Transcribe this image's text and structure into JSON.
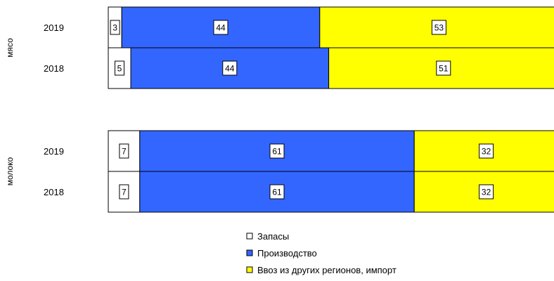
{
  "chart_data": {
    "type": "bar",
    "orientation": "horizontal",
    "stacked": "percent",
    "xlim": [
      0,
      100
    ],
    "groups": [
      {
        "name": "мясо",
        "categories": [
          "2019",
          "2018"
        ],
        "series": [
          {
            "name": "Запасы",
            "values": [
              3,
              5
            ]
          },
          {
            "name": "Производство",
            "values": [
              44,
              44
            ]
          },
          {
            "name": "Ввоз из других регионов, импорт",
            "values": [
              53,
              51
            ]
          }
        ]
      },
      {
        "name": "молоко",
        "categories": [
          "2019",
          "2018"
        ],
        "series": [
          {
            "name": "Запасы",
            "values": [
              7,
              7
            ]
          },
          {
            "name": "Производство",
            "values": [
              61,
              61
            ]
          },
          {
            "name": "Ввоз из других регионов, импорт",
            "values": [
              32,
              32
            ]
          }
        ]
      }
    ],
    "colors": [
      "#ffffff",
      "#3366ff",
      "#ffff00"
    ],
    "legend": {
      "position": "bottom",
      "entries": [
        "Запасы",
        "Производство",
        "Ввоз из других регионов, импорт"
      ]
    },
    "data_labels": true
  }
}
